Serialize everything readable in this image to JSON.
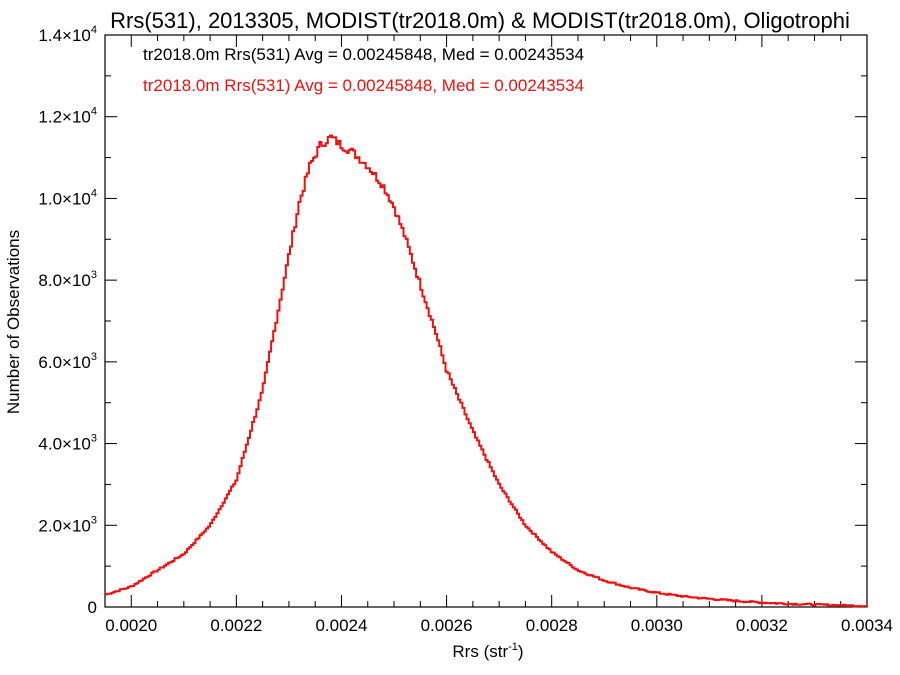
{
  "chart_data": {
    "type": "histogram",
    "title": "Rrs(531), 2013305, MODIST(tr2018.0m) & MODIST(tr2018.0m), Oligotrophi",
    "xlabel": "Rrs (str",
    "xlabel_sup": "-1",
    "xlabel_close": ")",
    "ylabel": "Number of Observations",
    "xlim": [
      0.00195,
      0.0034
    ],
    "ylim": [
      0,
      14000
    ],
    "xticks": [
      {
        "value": 0.002,
        "label": "0.0020"
      },
      {
        "value": 0.0022,
        "label": "0.0022"
      },
      {
        "value": 0.0024,
        "label": "0.0024"
      },
      {
        "value": 0.0026,
        "label": "0.0026"
      },
      {
        "value": 0.0028,
        "label": "0.0028"
      },
      {
        "value": 0.003,
        "label": "0.0030"
      },
      {
        "value": 0.0032,
        "label": "0.0032"
      },
      {
        "value": 0.0034,
        "label": "0.0034"
      }
    ],
    "yticks": [
      {
        "value": 0,
        "mant": "0",
        "exp": ""
      },
      {
        "value": 2000,
        "mant": "2.0×10",
        "exp": "3"
      },
      {
        "value": 4000,
        "mant": "4.0×10",
        "exp": "3"
      },
      {
        "value": 6000,
        "mant": "6.0×10",
        "exp": "3"
      },
      {
        "value": 8000,
        "mant": "8.0×10",
        "exp": "3"
      },
      {
        "value": 10000,
        "mant": "1.0×10",
        "exp": "4"
      },
      {
        "value": 12000,
        "mant": "1.2×10",
        "exp": "4"
      },
      {
        "value": 14000,
        "mant": "1.4×10",
        "exp": "4"
      }
    ],
    "legend": [
      {
        "label": "tr2018.0m Rrs(531) Avg = 0.00245848, Med = 0.00243534",
        "color": "#000000"
      },
      {
        "label": "tr2018.0m Rrs(531) Avg = 0.00245848, Med = 0.00243534",
        "color": "#ee1111"
      }
    ],
    "series": [
      {
        "color": "#ee1111",
        "x": [
          0.00195,
          0.002,
          0.00205,
          0.0021,
          0.00215,
          0.0022,
          0.00225,
          0.0023,
          0.00232,
          0.00234,
          0.00236,
          0.00238,
          0.0024,
          0.00242,
          0.00245,
          0.00248,
          0.0025,
          0.00252,
          0.00255,
          0.00258,
          0.0026,
          0.00265,
          0.0027,
          0.00275,
          0.0028,
          0.00285,
          0.0029,
          0.00295,
          0.003,
          0.00305,
          0.0031,
          0.00315,
          0.0032,
          0.00325,
          0.0033,
          0.00335,
          0.0034
        ],
        "values": [
          300,
          500,
          900,
          1300,
          2000,
          3100,
          5300,
          8600,
          9900,
          10800,
          11300,
          11500,
          11300,
          11150,
          10800,
          10300,
          9800,
          9100,
          7900,
          6700,
          5800,
          4300,
          3000,
          2000,
          1350,
          900,
          650,
          470,
          350,
          260,
          200,
          150,
          110,
          80,
          60,
          40,
          25
        ]
      }
    ]
  }
}
